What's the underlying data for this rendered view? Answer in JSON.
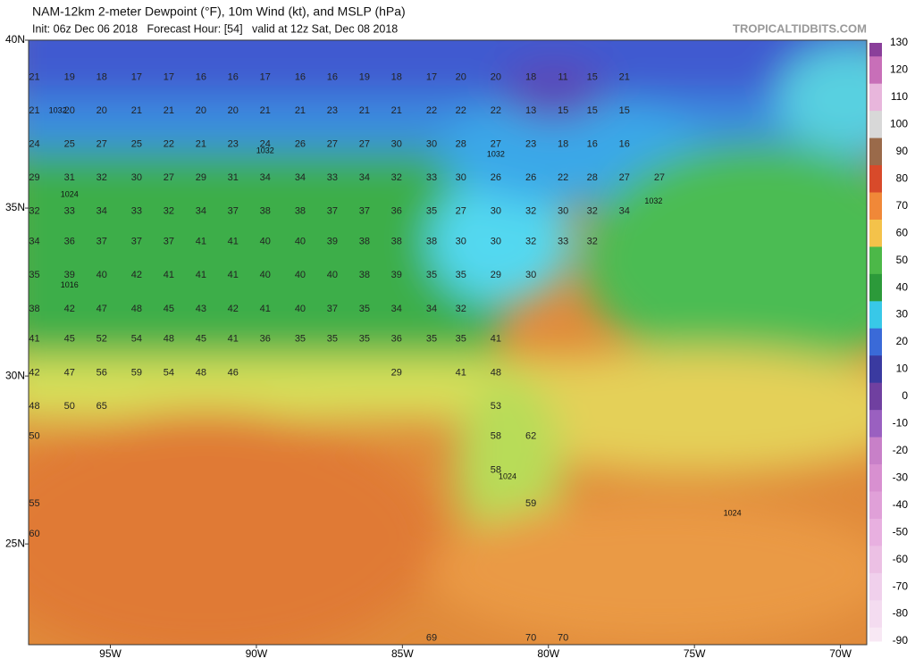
{
  "header": {
    "title": "NAM-12km 2-meter Dewpoint (°F), 10m Wind (kt), and MSLP (hPa)",
    "subtitle": "Init: 06z Dec 06 2018   Forecast Hour: [54]   valid at 12z Sat, Dec 08 2018",
    "site": "TROPICALTIDBITS.COM"
  },
  "map": {
    "lonlim": [
      -97.8,
      -69.1
    ],
    "latlim": [
      40,
      22
    ],
    "latticks": [
      {
        "value": 40,
        "label": "40N"
      },
      {
        "value": 35,
        "label": "35N"
      },
      {
        "value": 30,
        "label": "30N"
      },
      {
        "value": 25,
        "label": "25N"
      }
    ],
    "lonticks": [
      {
        "value": -95,
        "label": "95W"
      },
      {
        "value": -90,
        "label": "90W"
      },
      {
        "value": -85,
        "label": "85W"
      },
      {
        "value": -80,
        "label": "80W"
      },
      {
        "value": -75,
        "label": "75W"
      },
      {
        "value": -70,
        "label": "70W"
      }
    ],
    "dewpoint_rows": [
      {
        "lat": 38.9,
        "lons": [
          -97.6,
          -96.4,
          -95.3,
          -94.1,
          -93.0,
          -91.9,
          -90.8,
          -89.7,
          -88.5,
          -87.4,
          -86.3,
          -85.2,
          -84.0,
          -83.0,
          -81.8,
          -80.6,
          -79.5,
          -78.5,
          -77.4
        ],
        "values": [
          21,
          19,
          18,
          17,
          17,
          16,
          16,
          17,
          16,
          16,
          19,
          18,
          17,
          20,
          20,
          18,
          11,
          15,
          21
        ]
      },
      {
        "lat": 37.9,
        "lons": [
          -97.6,
          -96.4,
          -95.3,
          -94.1,
          -93.0,
          -91.9,
          -90.8,
          -89.7,
          -88.5,
          -87.4,
          -86.3,
          -85.2,
          -84.0,
          -83.0,
          -81.8,
          -80.6,
          -79.5,
          -78.5,
          -77.4
        ],
        "values": [
          21,
          20,
          20,
          21,
          21,
          20,
          20,
          21,
          21,
          23,
          21,
          21,
          22,
          22,
          22,
          13,
          15,
          15,
          15
        ]
      },
      {
        "lat": 36.9,
        "lons": [
          -97.6,
          -96.4,
          -95.3,
          -94.1,
          -93.0,
          -91.9,
          -90.8,
          -89.7,
          -88.5,
          -87.4,
          -86.3,
          -85.2,
          -84.0,
          -83.0,
          -81.8,
          -80.6,
          -79.5,
          -78.5,
          -77.4
        ],
        "values": [
          24,
          25,
          27,
          25,
          22,
          21,
          23,
          24,
          26,
          27,
          27,
          30,
          30,
          28,
          27,
          23,
          18,
          16,
          16
        ]
      },
      {
        "lat": 35.9,
        "lons": [
          -97.6,
          -96.4,
          -95.3,
          -94.1,
          -93.0,
          -91.9,
          -90.8,
          -89.7,
          -88.5,
          -87.4,
          -86.3,
          -85.2,
          -84.0,
          -83.0,
          -81.8,
          -80.6,
          -79.5,
          -78.5,
          -77.4,
          -76.2
        ],
        "values": [
          29,
          31,
          32,
          30,
          27,
          29,
          31,
          34,
          34,
          33,
          34,
          32,
          33,
          30,
          26,
          26,
          22,
          28,
          27,
          27
        ]
      },
      {
        "lat": 34.9,
        "lons": [
          -97.6,
          -96.4,
          -95.3,
          -94.1,
          -93.0,
          -91.9,
          -90.8,
          -89.7,
          -88.5,
          -87.4,
          -86.3,
          -85.2,
          -84.0,
          -83.0,
          -81.8,
          -80.6,
          -79.5,
          -78.5,
          -77.4
        ],
        "values": [
          32,
          33,
          34,
          33,
          32,
          34,
          37,
          38,
          38,
          37,
          37,
          36,
          35,
          27,
          30,
          32,
          30,
          32,
          34
        ]
      },
      {
        "lat": 34.0,
        "lons": [
          -97.6,
          -96.4,
          -95.3,
          -94.1,
          -93.0,
          -91.9,
          -90.8,
          -89.7,
          -88.5,
          -87.4,
          -86.3,
          -85.2,
          -84.0,
          -83.0,
          -81.8,
          -80.6,
          -79.5,
          -78.5
        ],
        "values": [
          34,
          36,
          37,
          37,
          37,
          41,
          41,
          40,
          40,
          39,
          38,
          38,
          38,
          30,
          30,
          32,
          33,
          32
        ]
      },
      {
        "lat": 33.0,
        "lons": [
          -97.6,
          -96.4,
          -95.3,
          -94.1,
          -93.0,
          -91.9,
          -90.8,
          -89.7,
          -88.5,
          -87.4,
          -86.3,
          -85.2,
          -84.0,
          -83.0,
          -81.8,
          -80.6
        ],
        "values": [
          35,
          39,
          40,
          42,
          41,
          41,
          41,
          40,
          40,
          40,
          38,
          39,
          35,
          35,
          29,
          30
        ]
      },
      {
        "lat": 32.0,
        "lons": [
          -97.6,
          -96.4,
          -95.3,
          -94.1,
          -93.0,
          -91.9,
          -90.8,
          -89.7,
          -88.5,
          -87.4,
          -86.3,
          -85.2,
          -84.0,
          -83.0
        ],
        "values": [
          38,
          42,
          47,
          48,
          45,
          43,
          42,
          41,
          40,
          37,
          35,
          34,
          34,
          32
        ]
      },
      {
        "lat": 31.1,
        "lons": [
          -97.6,
          -96.4,
          -95.3,
          -94.1,
          -93.0,
          -91.9,
          -90.8,
          -89.7,
          -88.5,
          -87.4,
          -86.3,
          -85.2,
          -84.0,
          -83.0,
          -81.8
        ],
        "values": [
          41,
          45,
          52,
          54,
          48,
          45,
          41,
          36,
          35,
          35,
          35,
          36,
          35,
          35,
          41
        ]
      },
      {
        "lat": 30.1,
        "lons": [
          -97.6,
          -96.4,
          -95.3,
          -94.1,
          -93.0,
          -91.9,
          -90.8,
          -85.2,
          -83.0,
          -81.8
        ],
        "values": [
          42,
          47,
          56,
          59,
          54,
          48,
          46,
          29,
          41,
          48
        ]
      },
      {
        "lat": 29.1,
        "lons": [
          -97.6,
          -96.4,
          -95.3,
          -81.8
        ],
        "values": [
          48,
          50,
          65,
          53
        ]
      },
      {
        "lat": 28.2,
        "lons": [
          -97.6,
          -81.8,
          -80.6
        ],
        "values": [
          50,
          58,
          62
        ]
      },
      {
        "lat": 27.2,
        "lons": [
          -81.8
        ],
        "values": [
          58
        ]
      },
      {
        "lat": 26.2,
        "lons": [
          -97.6,
          -80.6
        ],
        "values": [
          55,
          59
        ]
      },
      {
        "lat": 25.3,
        "lons": [
          -97.6
        ],
        "values": [
          60
        ]
      },
      {
        "lat": 22.2,
        "lons": [
          -84.0,
          -80.6,
          -79.5
        ],
        "values": [
          69,
          70,
          70
        ]
      }
    ],
    "isobar_labels": [
      {
        "lat": 37.9,
        "lon": -96.8,
        "label": "1032"
      },
      {
        "lat": 36.7,
        "lon": -89.7,
        "label": "1032"
      },
      {
        "lat": 36.6,
        "lon": -81.8,
        "label": "1032"
      },
      {
        "lat": 35.4,
        "lon": -96.4,
        "label": "1024"
      },
      {
        "lat": 32.7,
        "lon": -96.4,
        "label": "1016"
      },
      {
        "lat": 35.2,
        "lon": -76.4,
        "label": "1032"
      },
      {
        "lat": 27.0,
        "lon": -81.4,
        "label": "1024"
      },
      {
        "lat": 25.9,
        "lon": -73.7,
        "label": "1024"
      }
    ]
  },
  "colorbar": {
    "ticks": [
      130,
      120,
      110,
      100,
      90,
      80,
      70,
      60,
      50,
      40,
      30,
      20,
      10,
      0,
      -10,
      -20,
      -30,
      -40,
      -50,
      -60,
      -70,
      -80,
      -90
    ],
    "colors": [
      "#8a3f9a",
      "#c86fb8",
      "#e8b6dc",
      "#d8d8d8",
      "#9a6a4a",
      "#d84a2a",
      "#f08838",
      "#f4c24a",
      "#4cb848",
      "#2c9a3a",
      "#38c8e8",
      "#3a6ad8",
      "#3a3aa0",
      "#7040a0",
      "#9a60c0",
      "#c880c8",
      "#d890d0",
      "#e0a0d8",
      "#e8b0e0",
      "#ecc0e4",
      "#f0d0ec",
      "#f4dcf0",
      "#f8e8f4"
    ]
  }
}
